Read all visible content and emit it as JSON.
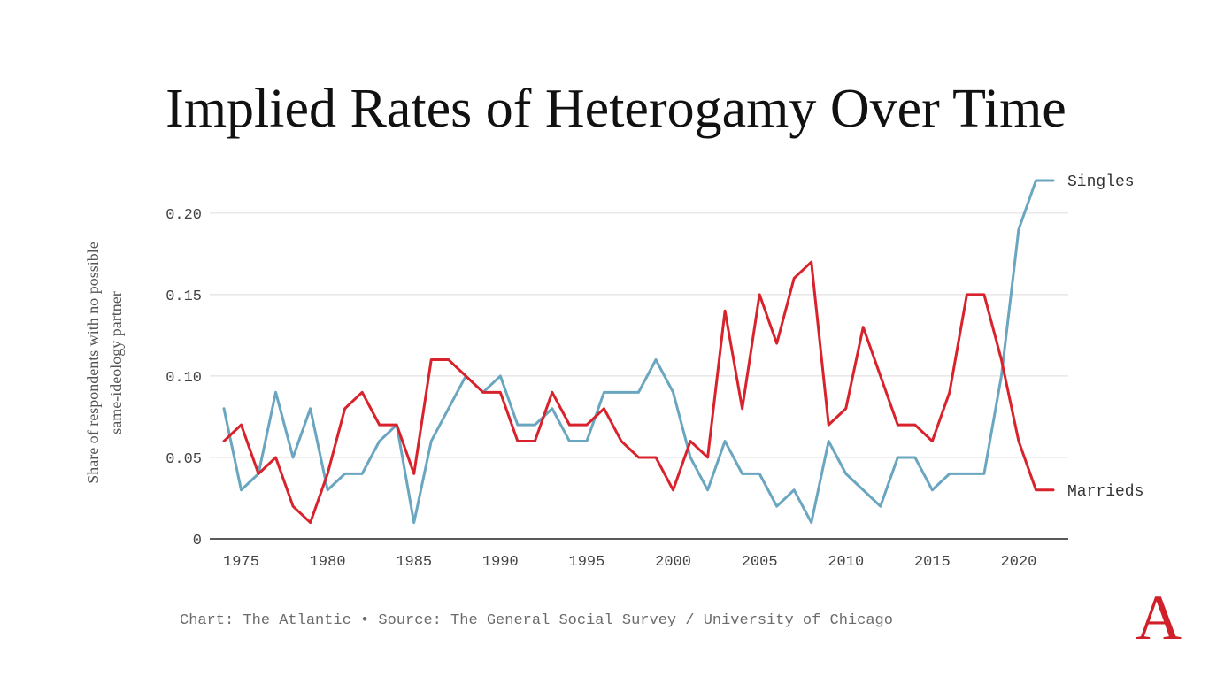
{
  "colors": {
    "singles": "#6aa6c0",
    "marrieds": "#d8232c",
    "grid": "#e2e2e2",
    "axis": "#222222",
    "tick_text": "#444444",
    "logo": "#d0202a"
  },
  "footer": {
    "text": "Chart: The Atlantic • Source: The General Social Survey / University of Chicago"
  },
  "logo": {
    "text": "A"
  },
  "chart_data": {
    "type": "line",
    "title": "Implied Rates of Heterogamy Over Time",
    "xlabel": "",
    "ylabel": "Share of respondents with no possible same-ideology partner",
    "ylabel_lines": [
      "Share of respondents with no possible",
      "same-ideology partner"
    ],
    "xlim": [
      1973.5,
      2023
    ],
    "ylim": [
      0,
      0.22
    ],
    "grid": true,
    "xticks": [
      1975,
      1980,
      1985,
      1990,
      1995,
      2000,
      2005,
      2010,
      2015,
      2020
    ],
    "yticks": [
      0,
      0.05,
      0.1,
      0.15,
      0.2
    ],
    "ytick_labels": [
      "0",
      "0.05",
      "0.10",
      "0.15",
      "0.20"
    ],
    "x": [
      1974,
      1975,
      1976,
      1977,
      1978,
      1979,
      1980,
      1981,
      1982,
      1983,
      1984,
      1985,
      1986,
      1987,
      1988,
      1989,
      1990,
      1991,
      1992,
      1993,
      1994,
      1995,
      1996,
      1997,
      1998,
      1999,
      2000,
      2001,
      2002,
      2003,
      2004,
      2005,
      2006,
      2007,
      2008,
      2009,
      2010,
      2011,
      2012,
      2013,
      2014,
      2015,
      2016,
      2017,
      2018,
      2019,
      2020,
      2021,
      2022
    ],
    "series": [
      {
        "name": "Singles",
        "color_key": "singles",
        "values": [
          0.08,
          0.03,
          0.04,
          0.09,
          0.05,
          0.08,
          0.03,
          0.04,
          0.04,
          0.06,
          0.07,
          0.01,
          0.06,
          0.08,
          0.1,
          0.09,
          0.1,
          0.07,
          0.07,
          0.08,
          0.06,
          0.06,
          0.09,
          0.09,
          0.09,
          0.11,
          0.09,
          0.05,
          0.03,
          0.06,
          0.04,
          0.04,
          0.02,
          0.03,
          0.01,
          0.06,
          0.04,
          0.03,
          0.02,
          0.05,
          0.05,
          0.03,
          0.04,
          0.04,
          0.04,
          0.1,
          0.19,
          0.22,
          0.22
        ]
      },
      {
        "name": "Marrieds",
        "color_key": "marrieds",
        "values": [
          0.06,
          0.07,
          0.04,
          0.05,
          0.02,
          0.01,
          0.04,
          0.08,
          0.09,
          0.07,
          0.07,
          0.04,
          0.11,
          0.11,
          0.1,
          0.09,
          0.09,
          0.06,
          0.06,
          0.09,
          0.07,
          0.07,
          0.08,
          0.06,
          0.05,
          0.05,
          0.03,
          0.06,
          0.05,
          0.14,
          0.08,
          0.15,
          0.12,
          0.16,
          0.17,
          0.07,
          0.08,
          0.13,
          0.1,
          0.07,
          0.07,
          0.06,
          0.09,
          0.15,
          0.15,
          0.11,
          0.06,
          0.03,
          0.03
        ]
      }
    ]
  }
}
